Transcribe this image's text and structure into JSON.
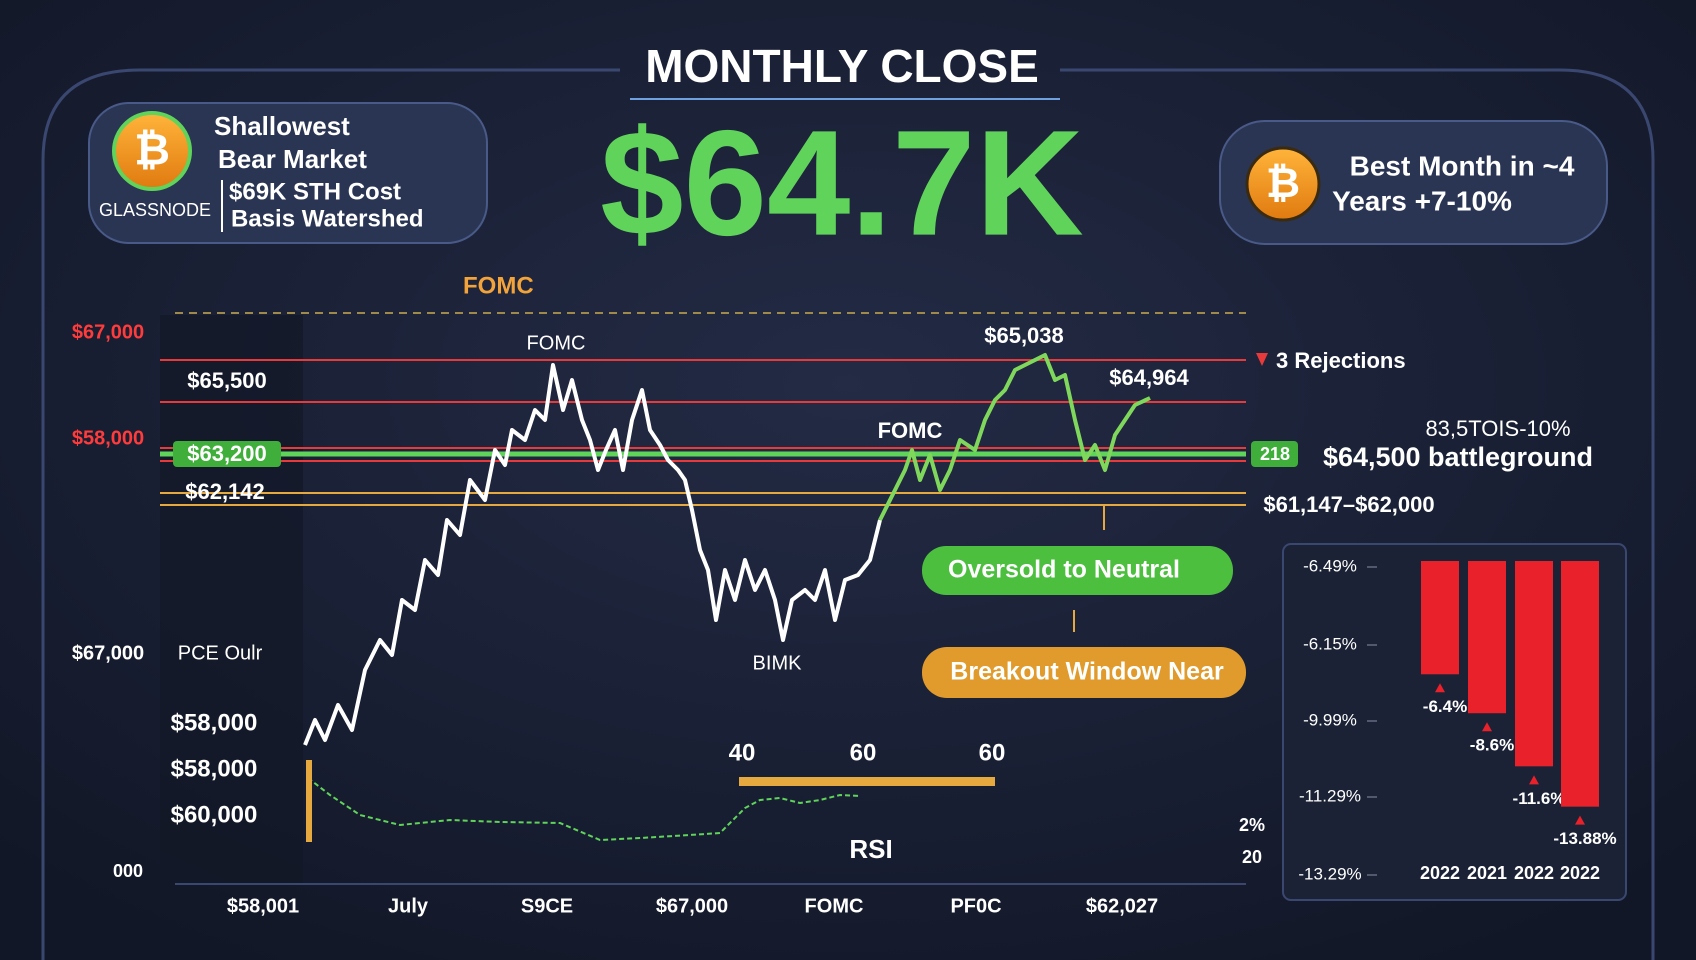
{
  "header": {
    "title": "MONTHLY CLOSE",
    "price": "$64.7K"
  },
  "left_badge": {
    "icon": "₿",
    "source": "GLASSNODE",
    "lines": [
      "Shallowest",
      "Bear Market",
      "$69K STH Cost",
      "Basis Watershed"
    ]
  },
  "right_badge": {
    "icon": "₿",
    "lines": [
      "Best Month in ~4",
      "Years +7-10%"
    ]
  },
  "main_chart": {
    "top_annotation": "FOMC",
    "left_axis": [
      "$67,000",
      "$58,000"
    ],
    "levels": [
      "$65,500",
      "$63,200",
      "$62,142"
    ],
    "right_labels": [
      "3 Rejections",
      "83,5TOIS-10%",
      "218",
      "$64,500 battleground",
      "$61,147–$62,000"
    ],
    "price_labels": [
      "$65,038",
      "$64,964",
      "FOMC",
      "FOMC",
      "BIMK"
    ],
    "pills": [
      "Oversold to Neutral",
      "Breakout Window Near"
    ],
    "lower_left": [
      "$67,000",
      "PCE Oulr",
      "$58,000",
      "$58,000",
      "$60,000",
      "000"
    ],
    "rsi": {
      "levels": [
        "40",
        "60",
        "60"
      ],
      "label": "RSI",
      "side": [
        "2%",
        "20"
      ]
    },
    "x_labels": [
      "$58,001",
      "July",
      "S9CE",
      "$67,000",
      "FOMC",
      "PF0C",
      "$62,027"
    ]
  },
  "inset": {
    "axis_labels": [
      "-6.49%",
      "-6.15%",
      "-9.99%",
      "-11.29%",
      "-13.29%"
    ],
    "values": [
      -6.4,
      -8.6,
      -11.6,
      -13.88
    ],
    "value_labels": [
      "-6.4%",
      "-8.6%",
      "-11.6%",
      "-13.88%"
    ],
    "categories": [
      "2022",
      "2021",
      "2022",
      "2022"
    ],
    "color": "#e8212b"
  }
}
